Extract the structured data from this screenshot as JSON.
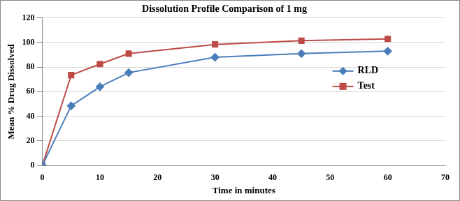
{
  "chart_data": {
    "type": "line",
    "title": "Dissolution Profile Comparison of 1 mg",
    "x_label": "Time in minutes",
    "y_label": "Mean % Drug Dissolved",
    "x": [
      0,
      5,
      10,
      15,
      30,
      45,
      60
    ],
    "series": [
      {
        "name": "RLD",
        "color": "#4a7ebb",
        "marker": "diamond",
        "line_style": "solid",
        "values": [
          0,
          48.5,
          64,
          75.5,
          88,
          91,
          93
        ]
      },
      {
        "name": "Test",
        "color": "#be4b48",
        "marker": "square",
        "line_style": "solid",
        "values": [
          0,
          73.5,
          82.5,
          91,
          98.5,
          101.5,
          103
        ]
      }
    ],
    "xlim": [
      0,
      70
    ],
    "xticks": [
      0,
      10,
      20,
      30,
      40,
      50,
      60,
      70
    ],
    "ylim": [
      0,
      120
    ],
    "yticks": [
      0,
      20,
      40,
      60,
      80,
      100,
      120
    ],
    "grid": "y",
    "legend": "right"
  }
}
